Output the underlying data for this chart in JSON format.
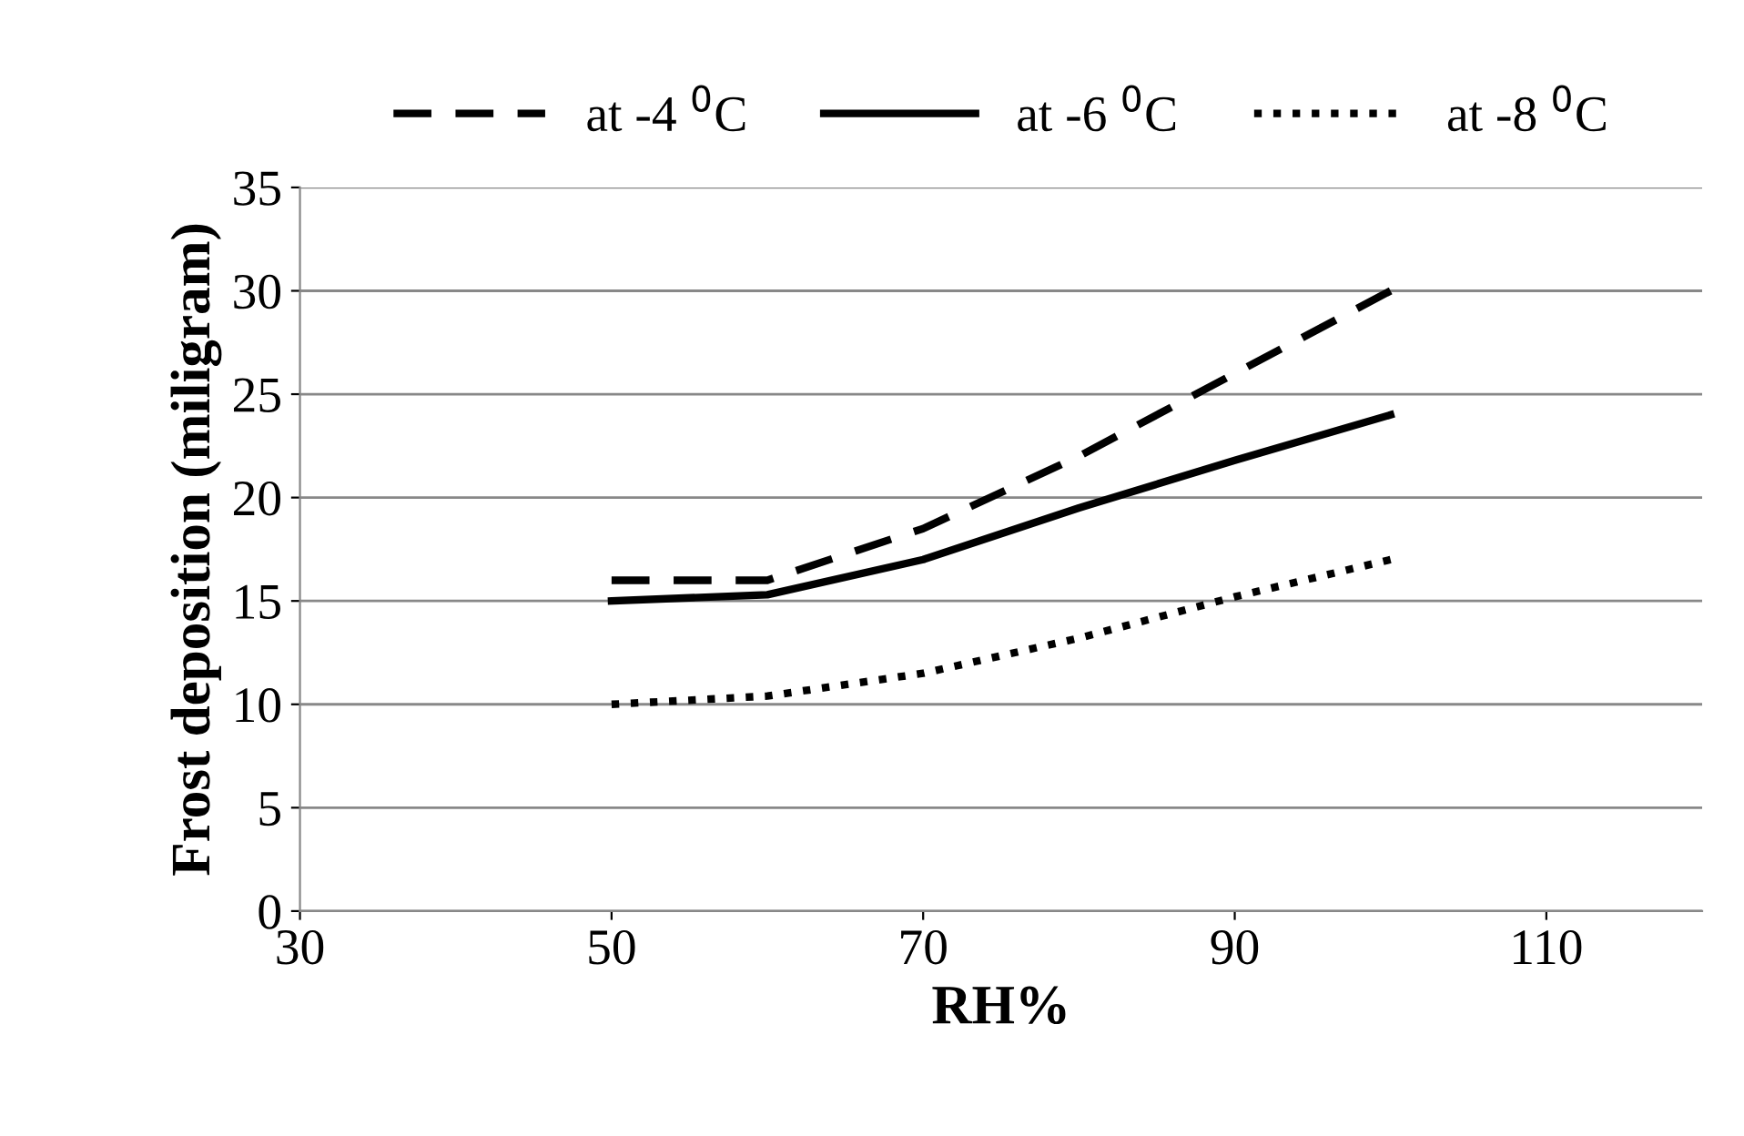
{
  "chart_data": {
    "type": "line",
    "xlabel": "RH%",
    "ylabel": "Frost deposition (miligram)",
    "x": [
      50,
      60,
      70,
      80,
      90,
      100
    ],
    "series": [
      {
        "name": "at -4 $^{0}$C",
        "color": "#000000",
        "line_style": "dashed",
        "values": [
          16,
          16,
          18.5,
          22,
          26,
          30
        ]
      },
      {
        "name": "at -6 $^{0}$C",
        "color": "#000000",
        "line_style": "solid",
        "values": [
          15,
          15.3,
          17,
          19.5,
          21.8,
          24
        ]
      },
      {
        "name": "at -8 $^{0}$C",
        "color": "#000000",
        "line_style": "dotted",
        "values": [
          10,
          10.4,
          11.5,
          13.2,
          15.2,
          17
        ]
      }
    ],
    "xlim": [
      30,
      120
    ],
    "xticks": [
      30,
      50,
      70,
      90,
      110
    ],
    "ylim": [
      0,
      35
    ],
    "yticks": [
      0,
      5,
      10,
      15,
      20,
      25,
      30,
      35
    ],
    "grid": "y",
    "legend": "top",
    "marker": "none"
  }
}
